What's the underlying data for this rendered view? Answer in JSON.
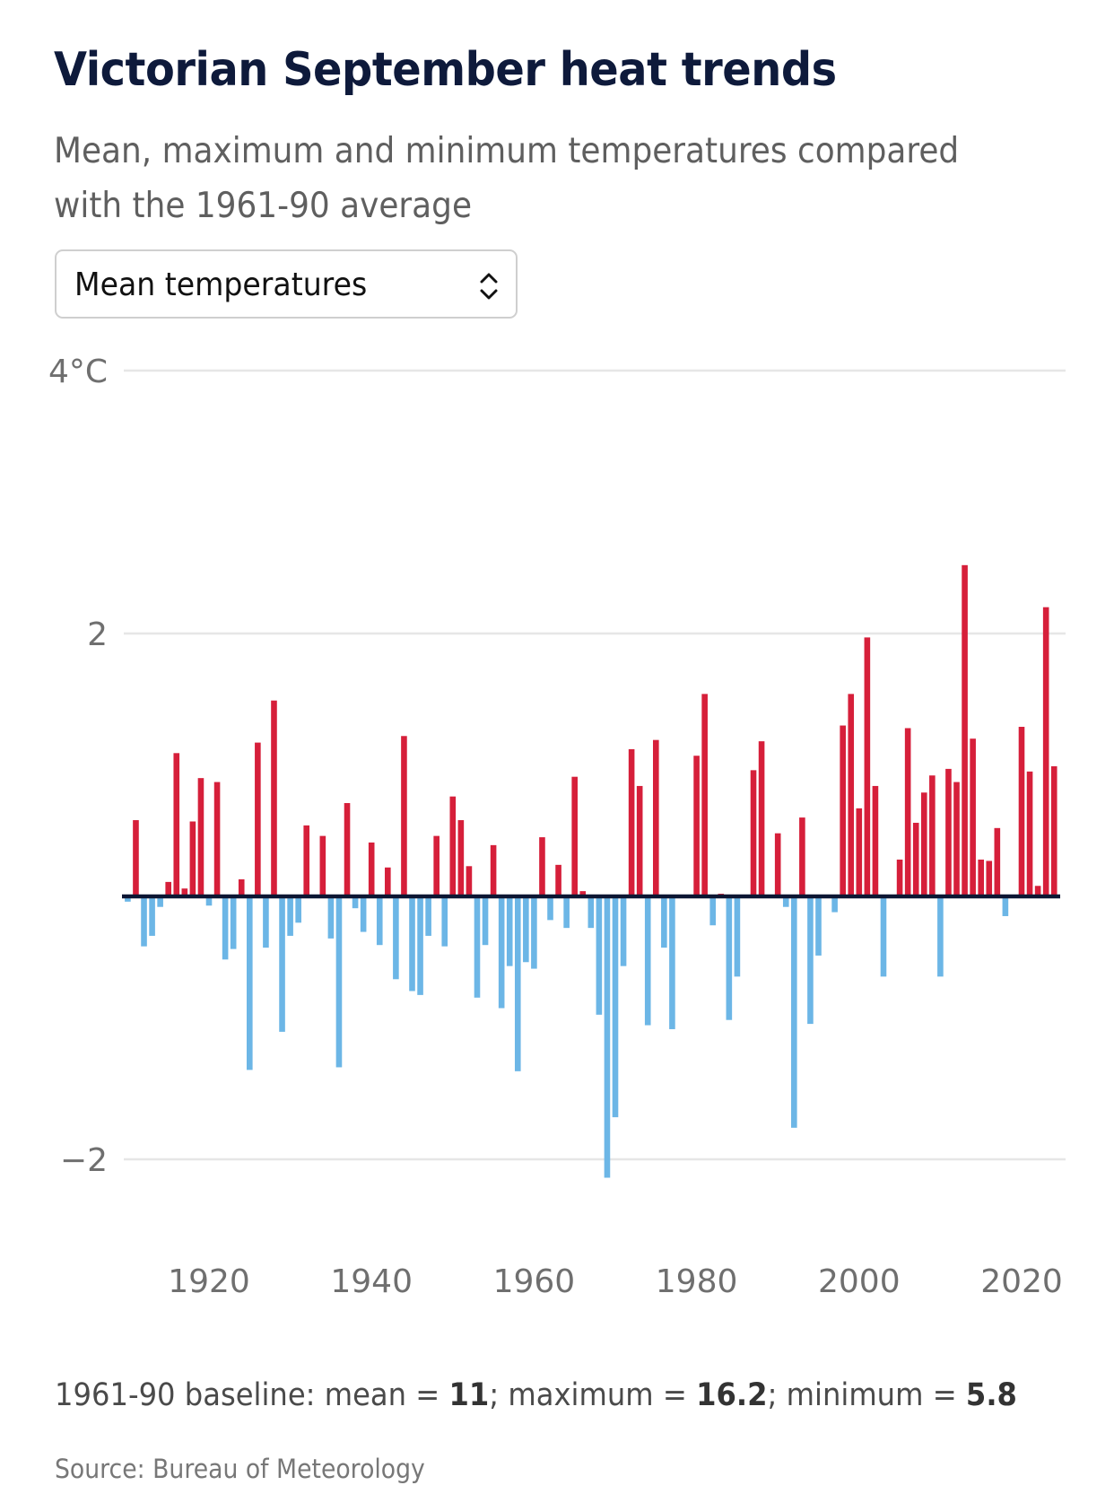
{
  "header": {
    "title": "Victorian September heat trends",
    "subtitle": "Mean, maximum and minimum temperatures compared with the 1961-90 average"
  },
  "selector": {
    "selected": "Mean temperatures",
    "icon": "chevron-up-down-icon"
  },
  "footnote": {
    "prefix": "1961-90 baseline: mean = ",
    "mean": "11",
    "sep1": "; maximum = ",
    "maximum": "16.2",
    "sep2": "; minimum = ",
    "minimum": "5.8"
  },
  "source": "Source: Bureau of Meteorology",
  "colors": {
    "positive": "#d61f3a",
    "negative": "#6cb6e6",
    "zero_line": "#0c1633",
    "grid": "#e6e6e6",
    "title": "#0e1a3b"
  },
  "chart_data": {
    "type": "bar",
    "title": "Victorian September heat trends",
    "subtitle": "Mean, maximum and minimum temperatures compared with the 1961-90 average",
    "series_name": "Mean temperature anomaly (°C)",
    "xlabel": "",
    "ylabel": "",
    "ylim": [
      -2,
      4
    ],
    "yticks": [
      4,
      2,
      -2
    ],
    "ytick_labels": [
      "4°C",
      "2",
      "−2"
    ],
    "xticks": [
      1920,
      1940,
      1960,
      1980,
      2000,
      2020
    ],
    "xtick_labels": [
      "1920",
      "1940",
      "1960",
      "1980",
      "2000",
      "2020"
    ],
    "grid": true,
    "legend": "none",
    "x": [
      1910,
      1911,
      1912,
      1913,
      1914,
      1915,
      1916,
      1917,
      1918,
      1919,
      1920,
      1921,
      1922,
      1923,
      1924,
      1925,
      1926,
      1927,
      1928,
      1929,
      1930,
      1931,
      1932,
      1933,
      1934,
      1935,
      1936,
      1937,
      1938,
      1939,
      1940,
      1941,
      1942,
      1943,
      1944,
      1945,
      1946,
      1947,
      1948,
      1949,
      1950,
      1951,
      1952,
      1953,
      1954,
      1955,
      1956,
      1957,
      1958,
      1959,
      1960,
      1961,
      1962,
      1963,
      1964,
      1965,
      1966,
      1967,
      1968,
      1969,
      1970,
      1971,
      1972,
      1973,
      1974,
      1975,
      1976,
      1977,
      1978,
      1979,
      1980,
      1981,
      1982,
      1983,
      1984,
      1985,
      1986,
      1987,
      1988,
      1989,
      1990,
      1991,
      1992,
      1993,
      1994,
      1995,
      1996,
      1997,
      1998,
      1999,
      2000,
      2001,
      2002,
      2003,
      2004,
      2005,
      2006,
      2007,
      2008,
      2009,
      2010,
      2011,
      2012,
      2013,
      2014,
      2015,
      2016,
      2017,
      2018,
      2019,
      2020,
      2021,
      2022,
      2023,
      2024
    ],
    "values": [
      -0.04,
      0.58,
      -0.38,
      -0.3,
      -0.08,
      0.11,
      1.09,
      0.06,
      0.57,
      0.9,
      -0.07,
      0.87,
      -0.48,
      -0.4,
      0.13,
      -1.32,
      1.17,
      -0.39,
      1.49,
      -1.03,
      -0.3,
      -0.2,
      0.54,
      0.0,
      0.46,
      -0.32,
      -1.3,
      0.71,
      -0.09,
      -0.27,
      0.41,
      -0.37,
      0.22,
      -0.63,
      1.22,
      -0.72,
      -0.75,
      -0.3,
      0.46,
      -0.38,
      0.76,
      0.58,
      0.23,
      -0.77,
      -0.37,
      0.39,
      -0.85,
      -0.53,
      -1.33,
      -0.5,
      -0.55,
      0.45,
      -0.18,
      0.24,
      -0.24,
      0.91,
      0.04,
      -0.24,
      -0.9,
      -2.14,
      -1.68,
      -0.53,
      1.12,
      0.84,
      -0.98,
      1.19,
      -0.39,
      -1.01,
      0.0,
      0.0,
      1.07,
      1.54,
      -0.22,
      0.02,
      -0.94,
      -0.61,
      0.0,
      0.96,
      1.18,
      0.0,
      0.48,
      -0.08,
      -1.76,
      0.6,
      -0.97,
      -0.45,
      0.0,
      -0.12,
      1.3,
      1.54,
      0.67,
      1.97,
      0.84,
      -0.61,
      0.0,
      0.28,
      1.28,
      0.56,
      0.79,
      0.92,
      -0.61,
      0.97,
      0.87,
      2.52,
      1.2,
      0.28,
      0.27,
      0.52,
      -0.15,
      0.0,
      1.29,
      0.95,
      0.08,
      2.2,
      0.99
    ]
  }
}
